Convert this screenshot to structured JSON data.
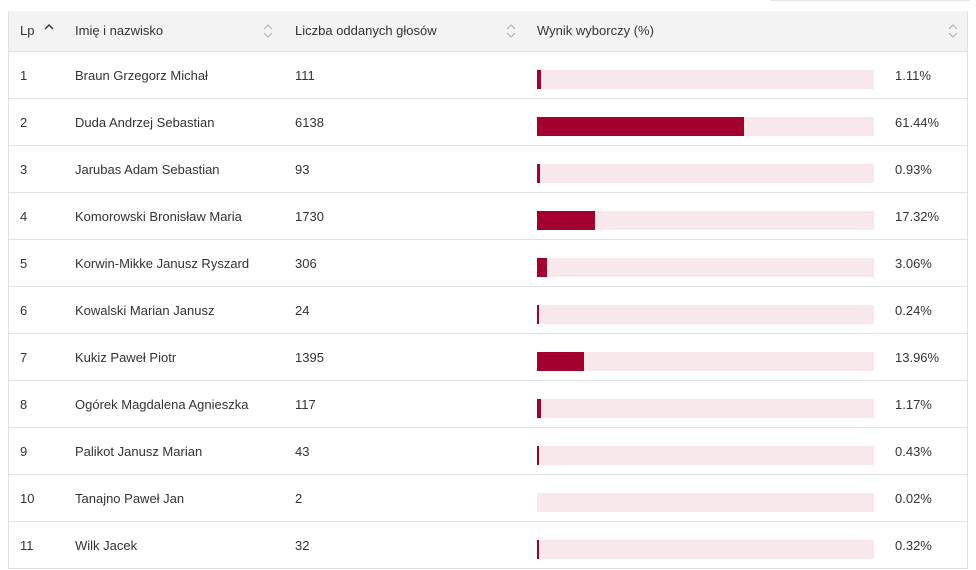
{
  "accent_color": "#a3002f",
  "track_color": "#f8e8ec",
  "header": {
    "lp": "Lp",
    "name": "Imię i nazwisko",
    "votes": "Liczba oddanych głosów",
    "result": "Wynik wyborczy (%)"
  },
  "rows": [
    {
      "lp": "1",
      "name": "Braun Grzegorz Michał",
      "votes": "111",
      "pct": "1.11%",
      "value": 1.11
    },
    {
      "lp": "2",
      "name": "Duda Andrzej Sebastian",
      "votes": "6138",
      "pct": "61.44%",
      "value": 61.44
    },
    {
      "lp": "3",
      "name": "Jarubas Adam Sebastian",
      "votes": "93",
      "pct": "0.93%",
      "value": 0.93
    },
    {
      "lp": "4",
      "name": "Komorowski Bronisław Maria",
      "votes": "1730",
      "pct": "17.32%",
      "value": 17.32
    },
    {
      "lp": "5",
      "name": "Korwin-Mikke Janusz Ryszard",
      "votes": "306",
      "pct": "3.06%",
      "value": 3.06
    },
    {
      "lp": "6",
      "name": "Kowalski Marian Janusz",
      "votes": "24",
      "pct": "0.24%",
      "value": 0.24
    },
    {
      "lp": "7",
      "name": "Kukiz Paweł Piotr",
      "votes": "1395",
      "pct": "13.96%",
      "value": 13.96
    },
    {
      "lp": "8",
      "name": "Ogórek Magdalena Agnieszka",
      "votes": "117",
      "pct": "1.17%",
      "value": 1.17
    },
    {
      "lp": "9",
      "name": "Palikot Janusz Marian",
      "votes": "43",
      "pct": "0.43%",
      "value": 0.43
    },
    {
      "lp": "10",
      "name": "Tanajno Paweł Jan",
      "votes": "2",
      "pct": "0.02%",
      "value": 0.02
    },
    {
      "lp": "11",
      "name": "Wilk Jacek",
      "votes": "32",
      "pct": "0.32%",
      "value": 0.32
    }
  ]
}
